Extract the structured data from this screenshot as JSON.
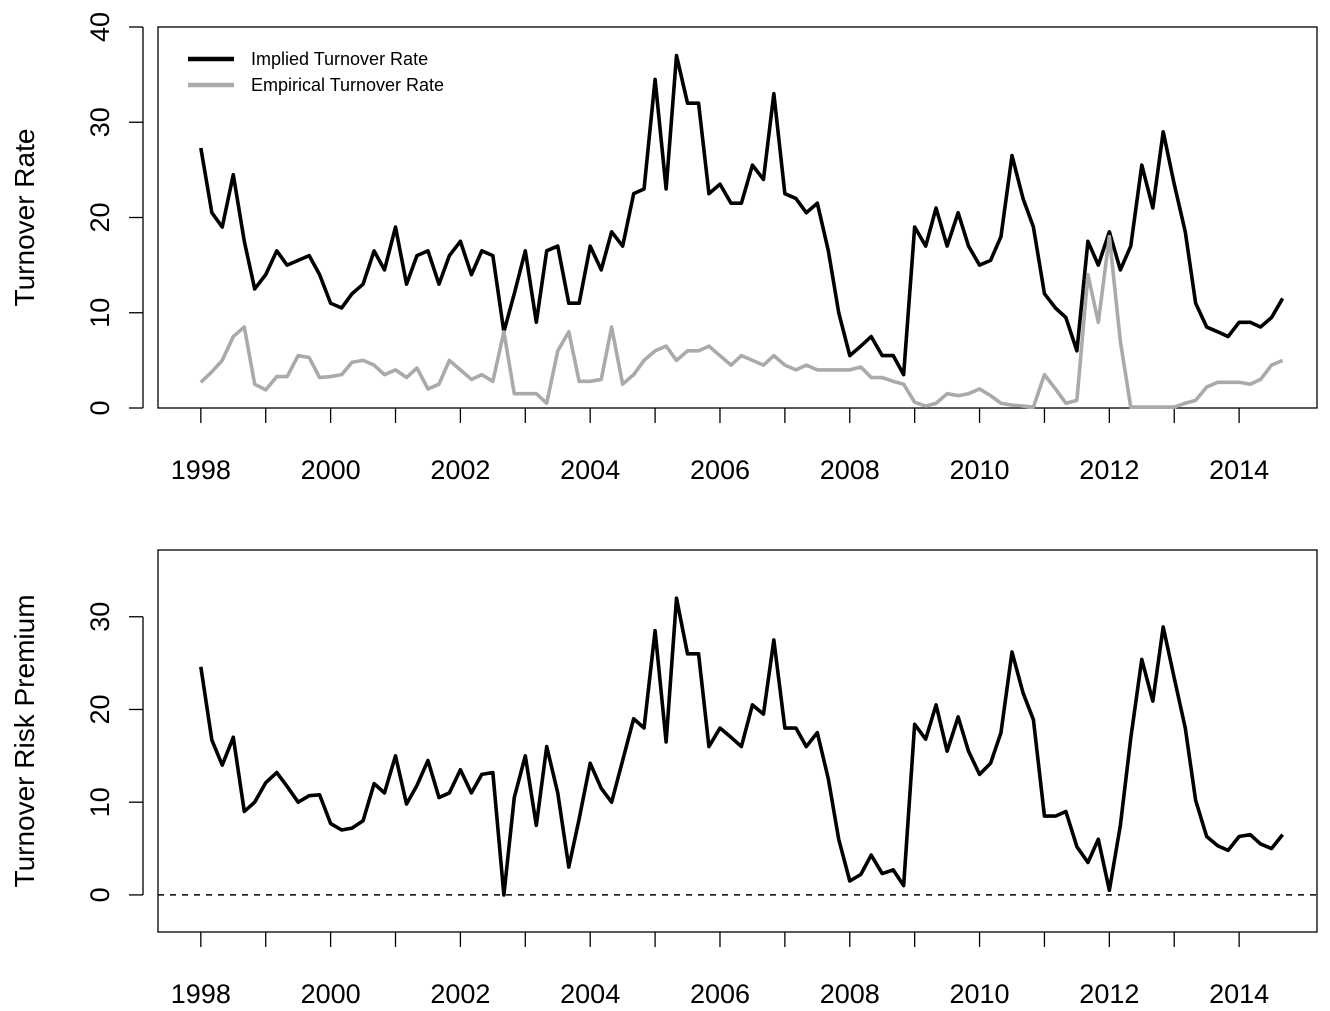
{
  "chart_data": [
    {
      "type": "line",
      "ylabel": "Turnover Rate",
      "x": [
        1998,
        1998.17,
        1998.33,
        1998.5,
        1998.67,
        1998.83,
        1999,
        1999.17,
        1999.33,
        1999.5,
        1999.67,
        1999.83,
        2000,
        2000.17,
        2000.33,
        2000.5,
        2000.67,
        2000.83,
        2001,
        2001.17,
        2001.33,
        2001.5,
        2001.67,
        2001.83,
        2002,
        2002.17,
        2002.33,
        2002.5,
        2002.67,
        2002.83,
        2003,
        2003.17,
        2003.33,
        2003.5,
        2003.67,
        2003.83,
        2004,
        2004.17,
        2004.33,
        2004.5,
        2004.67,
        2004.83,
        2005,
        2005.17,
        2005.33,
        2005.5,
        2005.67,
        2005.83,
        2006,
        2006.17,
        2006.33,
        2006.5,
        2006.67,
        2006.83,
        2007,
        2007.17,
        2007.33,
        2007.5,
        2007.67,
        2007.83,
        2008,
        2008.17,
        2008.33,
        2008.5,
        2008.67,
        2008.83,
        2009,
        2009.17,
        2009.33,
        2009.5,
        2009.67,
        2009.83,
        2010,
        2010.17,
        2010.33,
        2010.5,
        2010.67,
        2010.83,
        2011,
        2011.17,
        2011.33,
        2011.5,
        2011.67,
        2011.83,
        2012,
        2012.17,
        2012.33,
        2012.5,
        2012.67,
        2012.83,
        2013,
        2013.17,
        2013.33,
        2013.5,
        2013.67,
        2013.83,
        2014,
        2014.17,
        2014.33,
        2014.5,
        2014.67
      ],
      "series": [
        {
          "name": "Implied Turnover Rate",
          "color": "#000000",
          "values": [
            27.3,
            20.5,
            19,
            24.5,
            17.5,
            12.5,
            14,
            16.5,
            15,
            15.5,
            16,
            14,
            11,
            10.5,
            12,
            13,
            16.5,
            14.5,
            19,
            13,
            16,
            16.5,
            13,
            16,
            17.5,
            14,
            16.5,
            16,
            8,
            12,
            16.5,
            9,
            16.5,
            17,
            11,
            11,
            17,
            14.5,
            18.5,
            17,
            22.5,
            23,
            34.5,
            23,
            37,
            32,
            32,
            22.5,
            23.5,
            21.5,
            21.5,
            25.5,
            24,
            33,
            22.5,
            22,
            20.5,
            21.5,
            16.5,
            10,
            5.5,
            6.5,
            7.5,
            5.5,
            5.5,
            3.5,
            19,
            17,
            21,
            17,
            20.5,
            17,
            15,
            15.5,
            18,
            26.5,
            22,
            19,
            12,
            10.5,
            9.5,
            6,
            17.5,
            15,
            18.5,
            14.5,
            17,
            25.5,
            21,
            29,
            23.5,
            18.5,
            11,
            8.5,
            8,
            7.5,
            9,
            9,
            8.5,
            9.5,
            11.5
          ]
        },
        {
          "name": "Empirical Turnover Rate",
          "color": "#aaaaaa",
          "values": [
            2.7,
            3.8,
            5,
            7.5,
            8.5,
            2.5,
            1.9,
            3.3,
            3.3,
            5.5,
            5.3,
            3.2,
            3.3,
            3.5,
            4.8,
            5,
            4.5,
            3.5,
            4,
            3.2,
            4.2,
            2,
            2.5,
            5,
            4,
            3,
            3.5,
            2.8,
            8,
            1.5,
            1.5,
            1.5,
            0.5,
            6,
            8,
            2.8,
            2.8,
            3,
            8.5,
            2.5,
            3.5,
            5,
            6,
            6.5,
            5,
            6,
            6,
            6.5,
            5.5,
            4.5,
            5.5,
            5,
            4.5,
            5.5,
            4.5,
            4,
            4.5,
            4,
            4,
            4,
            4,
            4.3,
            3.2,
            3.2,
            2.8,
            2.5,
            0.6,
            0.2,
            0.5,
            1.5,
            1.3,
            1.5,
            2,
            1.3,
            0.5,
            0.3,
            0.2,
            0.1,
            3.5,
            2,
            0.5,
            0.8,
            14,
            9,
            18,
            7,
            0.1,
            0.1,
            0.1,
            0.1,
            0.1,
            0.5,
            0.8,
            2.2,
            2.7,
            2.7,
            2.7,
            2.5,
            3,
            4.5,
            5
          ]
        }
      ],
      "xlim": [
        1997.34,
        2015.2
      ],
      "xticks": [
        1998,
        2000,
        2002,
        2004,
        2006,
        2008,
        2010,
        2012,
        2014
      ],
      "xminorticks": [
        1999,
        2001,
        2003,
        2005,
        2007,
        2009,
        2011,
        2013
      ],
      "ylim": [
        0,
        40
      ],
      "yticks": [
        0,
        10,
        20,
        30,
        40
      ],
      "legend": "top-left"
    },
    {
      "type": "line",
      "ylabel": "Turnover Risk Premium",
      "x": [
        1998,
        1998.17,
        1998.33,
        1998.5,
        1998.67,
        1998.83,
        1999,
        1999.17,
        1999.33,
        1999.5,
        1999.67,
        1999.83,
        2000,
        2000.17,
        2000.33,
        2000.5,
        2000.67,
        2000.83,
        2001,
        2001.17,
        2001.33,
        2001.5,
        2001.67,
        2001.83,
        2002,
        2002.17,
        2002.33,
        2002.5,
        2002.67,
        2002.83,
        2003,
        2003.17,
        2003.33,
        2003.5,
        2003.67,
        2003.83,
        2004,
        2004.17,
        2004.33,
        2004.5,
        2004.67,
        2004.83,
        2005,
        2005.17,
        2005.33,
        2005.5,
        2005.67,
        2005.83,
        2006,
        2006.17,
        2006.33,
        2006.5,
        2006.67,
        2006.83,
        2007,
        2007.17,
        2007.33,
        2007.5,
        2007.67,
        2007.83,
        2008,
        2008.17,
        2008.33,
        2008.5,
        2008.67,
        2008.83,
        2009,
        2009.17,
        2009.33,
        2009.5,
        2009.67,
        2009.83,
        2010,
        2010.17,
        2010.33,
        2010.5,
        2010.67,
        2010.83,
        2011,
        2011.17,
        2011.33,
        2011.5,
        2011.67,
        2011.83,
        2012,
        2012.17,
        2012.33,
        2012.5,
        2012.67,
        2012.83,
        2013,
        2013.17,
        2013.33,
        2013.5,
        2013.67,
        2013.83,
        2014,
        2014.17,
        2014.33,
        2014.5,
        2014.67
      ],
      "series": [
        {
          "color": "#000000",
          "values": [
            24.6,
            16.7,
            14,
            17,
            9,
            10,
            12.1,
            13.2,
            11.7,
            10,
            10.7,
            10.8,
            7.7,
            7,
            7.2,
            8,
            12,
            11,
            15,
            9.8,
            11.8,
            14.5,
            10.5,
            11,
            13.5,
            11,
            13,
            13.2,
            0,
            10.5,
            15,
            7.5,
            16,
            11,
            3,
            8.2,
            14.2,
            11.5,
            10,
            14.5,
            19,
            18,
            28.5,
            16.5,
            32,
            26,
            26,
            16,
            18,
            17,
            16,
            20.5,
            19.5,
            27.5,
            18,
            18,
            16,
            17.5,
            12.5,
            6,
            1.5,
            2.2,
            4.3,
            2.3,
            2.7,
            1,
            18.4,
            16.8,
            20.5,
            15.5,
            19.2,
            15.5,
            13,
            14.2,
            17.5,
            26.2,
            21.8,
            18.9,
            8.5,
            8.5,
            9,
            5.2,
            3.5,
            6,
            0.5,
            7.5,
            16.9,
            25.4,
            20.9,
            28.9,
            23.4,
            18,
            10.2,
            6.3,
            5.3,
            4.8,
            6.3,
            6.5,
            5.5,
            5,
            6.5
          ]
        }
      ],
      "xlim": [
        1997.34,
        2015.2
      ],
      "xticks": [
        1998,
        2000,
        2002,
        2004,
        2006,
        2008,
        2010,
        2012,
        2014
      ],
      "xminorticks": [
        1999,
        2001,
        2003,
        2005,
        2007,
        2009,
        2011,
        2013
      ],
      "ylim": [
        -4,
        37.2
      ],
      "yticks": [
        0,
        10,
        20,
        30
      ],
      "hline": 0
    }
  ]
}
